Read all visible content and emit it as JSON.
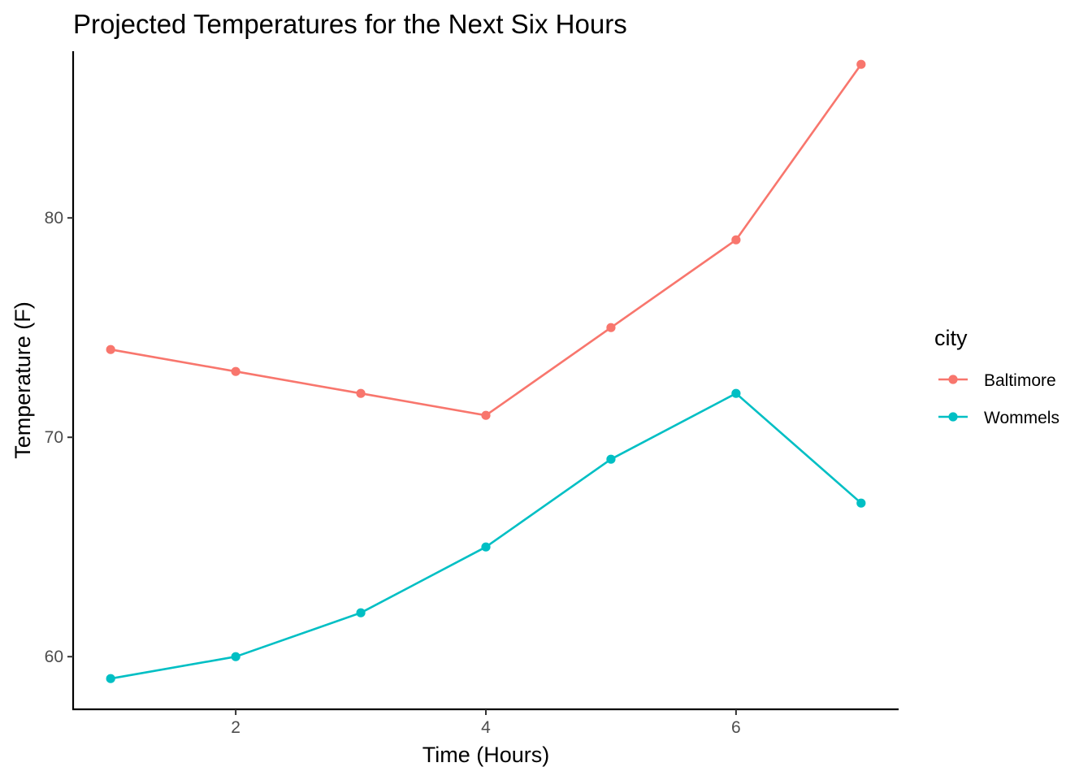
{
  "chart_data": {
    "type": "line",
    "title": "Projected Temperatures for the Next Six Hours",
    "xlabel": "Time (Hours)",
    "ylabel": "Temperature (F)",
    "xlim": [
      0.7,
      7.3
    ],
    "ylim": [
      57.6,
      87.6
    ],
    "x_ticks": [
      2,
      4,
      6
    ],
    "y_ticks": [
      60,
      70,
      80
    ],
    "x": [
      1,
      2,
      3,
      4,
      5,
      6,
      7
    ],
    "grid": false,
    "legend": {
      "title": "city",
      "placement": "right"
    },
    "series": [
      {
        "name": "Baltimore",
        "color": "#F8766D",
        "values": [
          74,
          73,
          72,
          71,
          75,
          79,
          87
        ]
      },
      {
        "name": "Wommels",
        "color": "#00BFC4",
        "values": [
          59,
          60,
          62,
          65,
          69,
          72,
          67
        ]
      }
    ]
  }
}
